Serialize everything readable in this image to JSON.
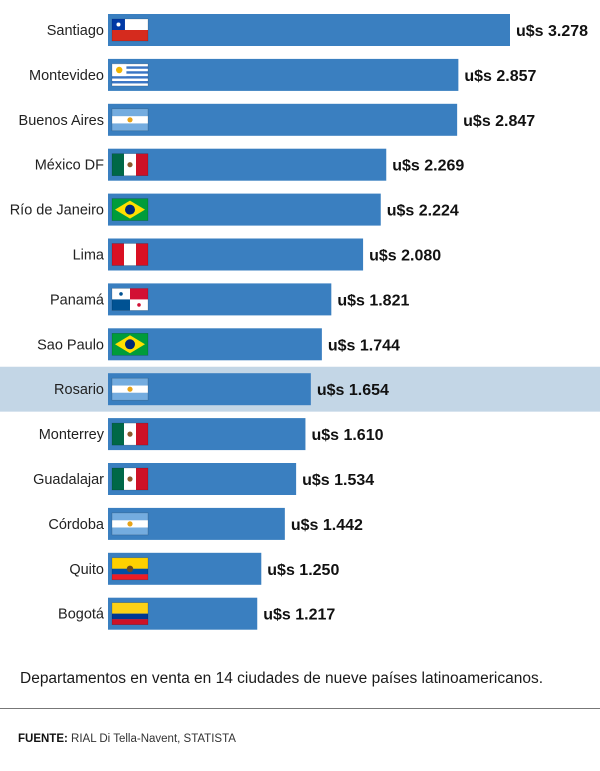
{
  "chart_data": {
    "type": "bar",
    "orientation": "horizontal",
    "categories": [
      "Santiago",
      "Montevideo",
      "Buenos Aires",
      "México DF",
      "Río de Janeiro",
      "Lima",
      "Panamá",
      "Sao Paulo",
      "Rosario",
      "Monterrey",
      "Guadalajar",
      "Córdoba",
      "Quito",
      "Bogotá"
    ],
    "values": [
      3278,
      2857,
      2847,
      2269,
      2224,
      2080,
      1821,
      1744,
      1654,
      1610,
      1534,
      1442,
      1250,
      1217
    ],
    "value_labels": [
      "u$s 3.278",
      "u$s 2.857",
      "u$s 2.847",
      "u$s 2.269",
      "u$s 2.224",
      "u$s 2.080",
      "u$s 1.821",
      "u$s 1.744",
      "u$s 1.654",
      "u$s 1.610",
      "u$s 1.534",
      "u$s 1.442",
      "u$s 1.250",
      "u$s 1.217"
    ],
    "flags": [
      "chile",
      "uruguay",
      "argentina",
      "mexico",
      "brazil",
      "peru",
      "panama",
      "brazil",
      "argentina",
      "mexico",
      "mexico",
      "argentina",
      "ecuador",
      "colombia"
    ],
    "highlighted": "Rosario",
    "xlim": [
      0,
      3278
    ]
  },
  "colors": {
    "bar": "#3a7fc0",
    "highlight_band": "#c3d6e6"
  },
  "caption": "Departamentos en venta en 14 ciudades de nueve países latinoamericanos.",
  "source": {
    "label": "FUENTE:",
    "text": " RIAL Di Tella-Navent, STATISTA"
  }
}
